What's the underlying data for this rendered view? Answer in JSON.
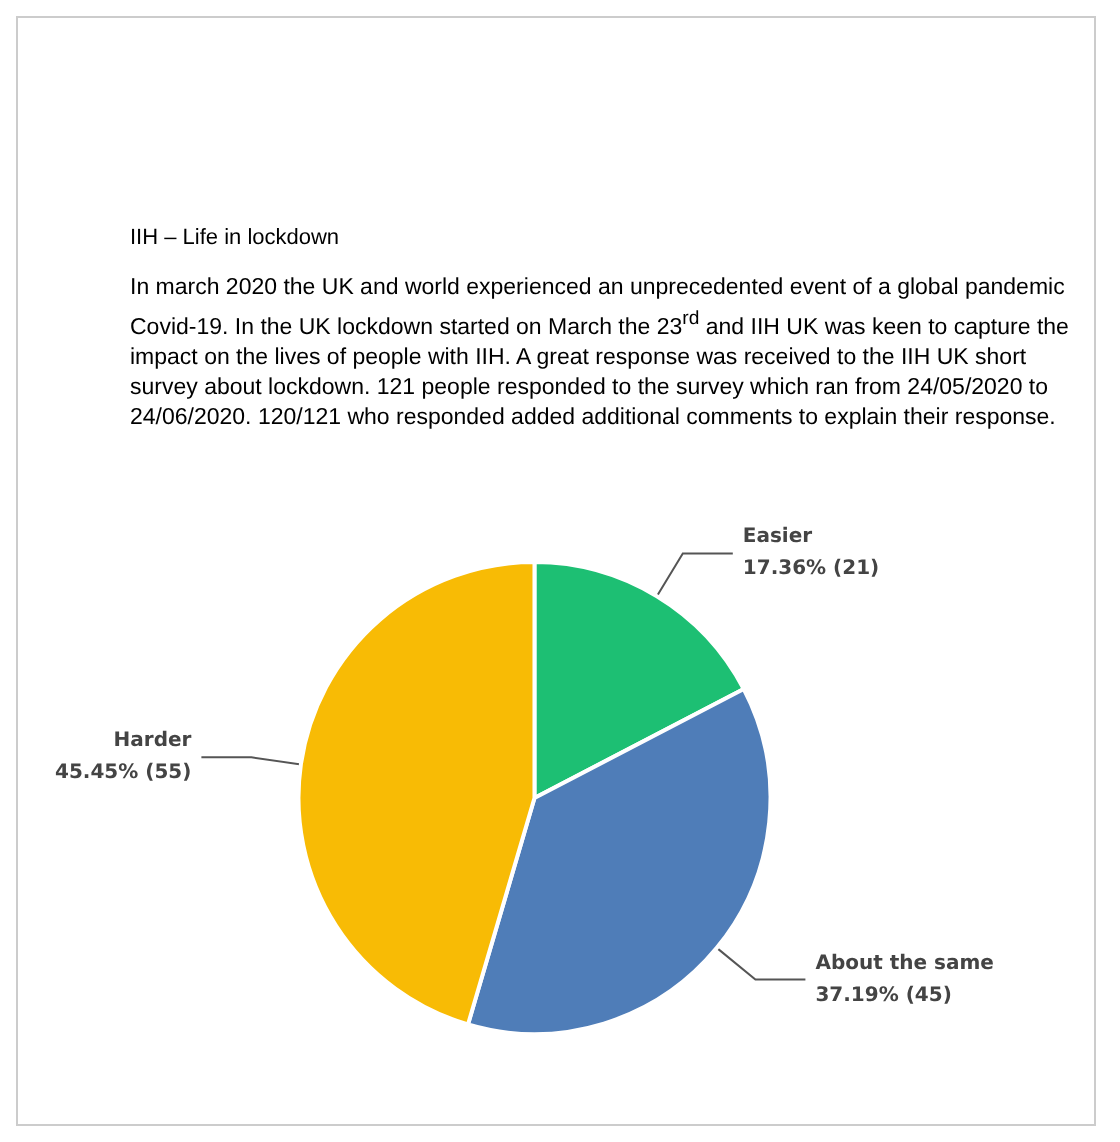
{
  "chart_data": {
    "type": "pie",
    "title": "IIH – Life in lockdown",
    "subtitle": "In march 2020 the UK and world experienced an unprecedented event of a global pandemic Covid-19. In the UK lockdown started on March the 23$^{rd}$ and IIH UK was keen to capture the impact on the lives of people with IIH. A great response was received to the IIH UK short survey about lockdown. 121 people responded to the survey which ran from 24/05/2020 to 24/06/2020. 120/121 who responded added additional comments to explain their response.",
    "categories": [
      "Easier",
      "About the same",
      "Harder"
    ],
    "values": [
      21,
      45,
      55
    ],
    "value_labels": [
      "17.36% (21)",
      "37.19% (45)",
      "45.45% (55)"
    ],
    "colors": [
      "#1dbf73",
      "#4f7db8",
      "#f8bb05"
    ],
    "legend": false
  }
}
